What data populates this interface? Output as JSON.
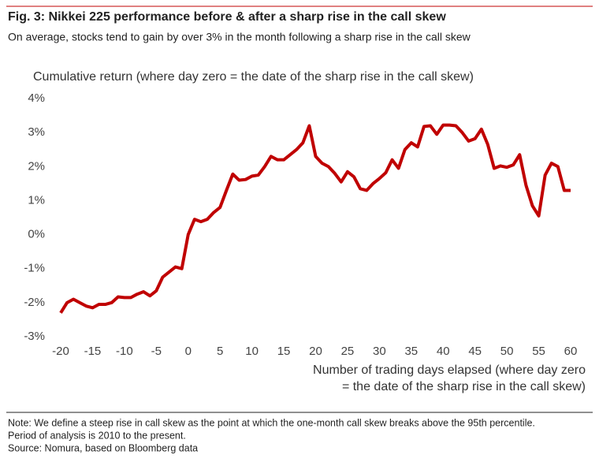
{
  "chart_data": {
    "type": "line",
    "title": "Fig. 3: Nikkei 225 performance before & after a sharp rise in the call skew",
    "subtitle": "On average, stocks tend to gain by over 3% in the month following a sharp rise in the call skew",
    "y_label": "Cumulative return (where day zero = the date of the sharp rise in the call skew)",
    "x_label": [
      "Number of trading days elapsed (where day zero",
      "= the date of the sharp rise in the call skew)"
    ],
    "notes": [
      "Note: We define a steep rise in call skew as the point at which the one-month call skew breaks above the 95th percentile.",
      "Period of analysis is 2010 to the present.",
      "Source: Nomura, based on Bloomberg data"
    ],
    "x": [
      -20,
      -19,
      -18,
      -17,
      -16,
      -15,
      -14,
      -13,
      -12,
      -11,
      -10,
      -9,
      -8,
      -7,
      -6,
      -5,
      -4,
      -3,
      -2,
      -1,
      0,
      1,
      2,
      3,
      4,
      5,
      6,
      7,
      8,
      9,
      10,
      11,
      12,
      13,
      14,
      15,
      16,
      17,
      18,
      19,
      20,
      21,
      22,
      23,
      24,
      25,
      26,
      27,
      28,
      29,
      30,
      31,
      32,
      33,
      34,
      35,
      36,
      37,
      38,
      39,
      40,
      41,
      42,
      43,
      44,
      45,
      46,
      47,
      48,
      49,
      50,
      51,
      52,
      53,
      54,
      55,
      56,
      57,
      58,
      59,
      60
    ],
    "series": [
      {
        "color": "#c00000",
        "values": [
          -2.3,
          -2.0,
          -1.9,
          -2.0,
          -2.1,
          -2.15,
          -2.05,
          -2.05,
          -2.0,
          -1.83,
          -1.85,
          -1.85,
          -1.75,
          -1.68,
          -1.8,
          -1.65,
          -1.25,
          -1.1,
          -0.95,
          -1.0,
          0.0,
          0.45,
          0.38,
          0.45,
          0.65,
          0.8,
          1.3,
          1.78,
          1.6,
          1.62,
          1.72,
          1.75,
          2.0,
          2.3,
          2.2,
          2.2,
          2.35,
          2.5,
          2.7,
          3.2,
          2.3,
          2.1,
          2.0,
          1.8,
          1.55,
          1.85,
          1.7,
          1.35,
          1.3,
          1.5,
          1.65,
          1.82,
          2.2,
          1.95,
          2.5,
          2.7,
          2.58,
          3.18,
          3.2,
          2.95,
          3.22,
          3.22,
          3.2,
          3.0,
          2.75,
          2.82,
          3.1,
          2.65,
          1.95,
          2.02,
          1.98,
          2.05,
          2.35,
          1.45,
          0.85,
          0.55,
          1.75,
          2.1,
          2.0,
          1.3,
          1.3
        ]
      }
    ],
    "xlim": [
      -20,
      60
    ],
    "xticks": [
      -20,
      -15,
      -10,
      -5,
      0,
      5,
      10,
      15,
      20,
      25,
      30,
      35,
      40,
      45,
      50,
      55,
      60
    ],
    "ylim": [
      -3,
      4
    ],
    "yticks": [
      {
        "value": -3,
        "label": "-3%"
      },
      {
        "value": -2,
        "label": "-2%"
      },
      {
        "value": -1,
        "label": "-1%"
      },
      {
        "value": 0,
        "label": "0%"
      },
      {
        "value": 1,
        "label": "1%"
      },
      {
        "value": 2,
        "label": "2%"
      },
      {
        "value": 3,
        "label": "3%"
      },
      {
        "value": 4,
        "label": "4%"
      }
    ],
    "grid": false
  }
}
